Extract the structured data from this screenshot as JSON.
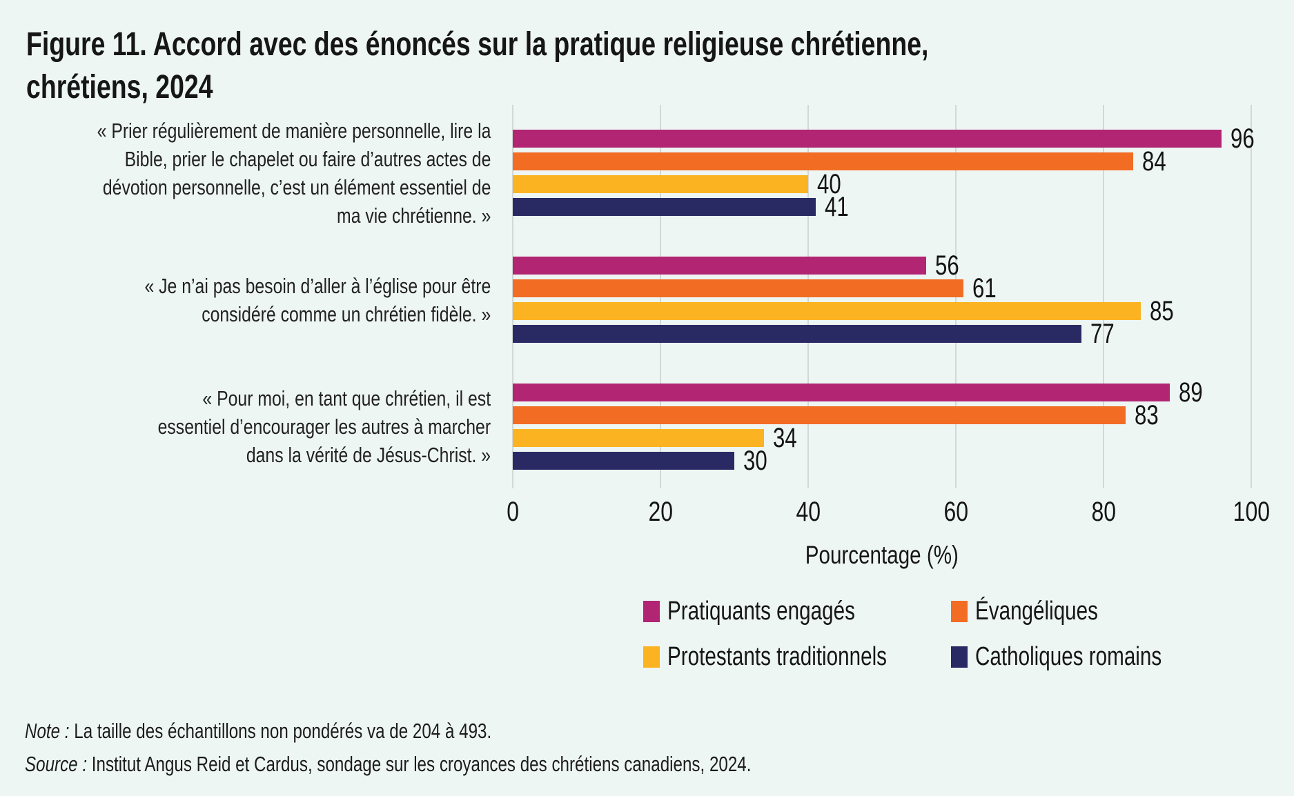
{
  "page": {
    "background": "#eef6f4",
    "text_color": "#1a1a1a"
  },
  "title": "Figure 11. Accord avec des énoncés sur la pratique religieuse chrétienne,\nchrétiens, 2024",
  "note": {
    "prefix": "Note :",
    "text": "La taille des échantillons non pondérés va de 204 à 493."
  },
  "source": {
    "prefix": "Source :",
    "text": "Institut Angus Reid et Cardus, sondage sur les croyances des chrétiens canadiens, 2024."
  },
  "chart_data": {
    "type": "bar",
    "orientation": "horizontal",
    "title": "Figure 11. Accord avec des énoncés sur la pratique religieuse chrétienne, chrétiens, 2024",
    "xlabel": "Pourcentage (%)",
    "xlim": [
      0,
      100
    ],
    "xticks": [
      "0",
      "20",
      "40",
      "60",
      "80",
      "100"
    ],
    "grid": true,
    "gridline_color": "#d2d8d6",
    "legend_position": "bottom",
    "categories": [
      "« Prier régulièrement de manière personnelle, lire la\nBible, prier le chapelet ou faire d’autres actes de\ndévotion personnelle, c’est un élément essentiel de\nma vie chrétienne. »",
      "« Je n’ai pas besoin d’aller à l’église pour être\nconsidéré comme un chrétien fidèle. »",
      "« Pour moi, en tant que chrétien, il est\nessentiel d’encourager les autres à marcher\ndans la vérité de Jésus-Christ. »"
    ],
    "series": [
      {
        "name": "Pratiquants engagés",
        "color": "#b12572",
        "values": [
          96,
          56,
          89
        ]
      },
      {
        "name": "Évangéliques",
        "color": "#f26c24",
        "values": [
          84,
          61,
          83
        ]
      },
      {
        "name": "Protestants traditionnels",
        "color": "#fbb322",
        "values": [
          40,
          85,
          34
        ]
      },
      {
        "name": "Catholiques romains",
        "color": "#292a64",
        "values": [
          41,
          77,
          30
        ]
      }
    ]
  }
}
